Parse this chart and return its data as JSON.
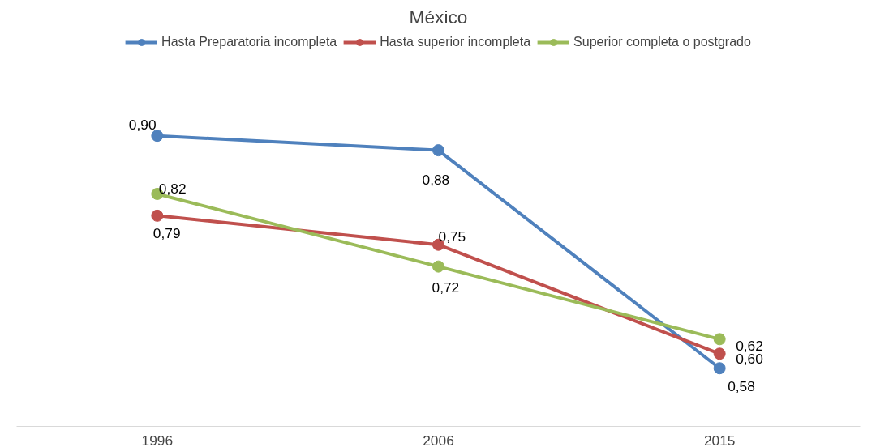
{
  "chart_data": {
    "type": "line",
    "title": "México",
    "categories": [
      "1996",
      "2006",
      "2015"
    ],
    "tick_labels": "x",
    "legend": "top",
    "marker": "circle",
    "series": [
      {
        "name": "Hasta Preparatoria incompleta",
        "color": "#4f81bd",
        "values": [
          0.9,
          0.88,
          0.58
        ],
        "value_labels": [
          "0,90",
          "0,88",
          "0,58"
        ]
      },
      {
        "name": "Hasta superior incompleta",
        "color": "#c0504d",
        "values": [
          0.79,
          0.75,
          0.6
        ],
        "value_labels": [
          "0,79",
          "0,75",
          "0,60"
        ]
      },
      {
        "name": "Superior completa o postgrado",
        "color": "#9bbb59",
        "values": [
          0.82,
          0.72,
          0.62
        ],
        "value_labels": [
          "0,82",
          "0,72",
          "0,62"
        ]
      }
    ]
  }
}
